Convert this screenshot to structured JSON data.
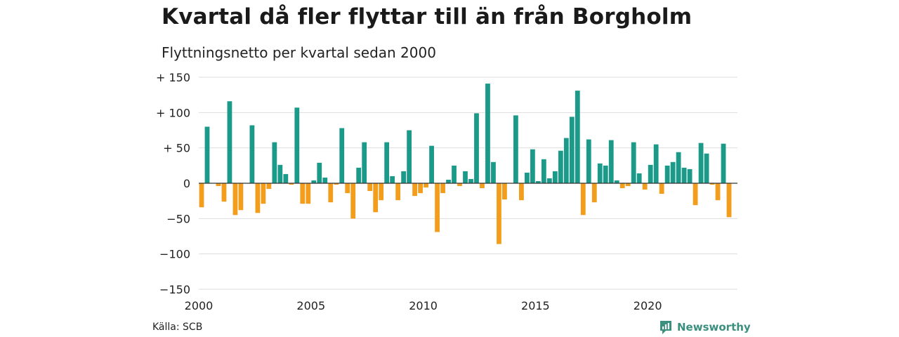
{
  "title": "Kvartal då fler flyttar till än från Borgholm",
  "subtitle": "Flyttningsnetto per kvartal sedan 2000",
  "source": "Källa: SCB",
  "brand": "Newsworthy",
  "colors": {
    "positive": "#1b9a8a",
    "negative": "#f29d1b",
    "grid": "#dddddd",
    "zero": "#333333",
    "brand": "#3a8f7f"
  },
  "icons": {
    "brand": "newsworthy-logo-icon"
  },
  "chart_data": {
    "type": "bar",
    "title": "Kvartal då fler flyttar till än från Borgholm",
    "subtitle": "Flyttningsnetto per kvartal sedan 2000",
    "xlabel": "",
    "ylabel": "",
    "x_start": 2000,
    "quarters_per_year": 4,
    "xlim": [
      2000,
      2024
    ],
    "x_ticks": [
      2000,
      2005,
      2010,
      2015,
      2020
    ],
    "x_tick_labels": [
      "2000",
      "2005",
      "2010",
      "2015",
      "2020"
    ],
    "ylim": [
      -150,
      150
    ],
    "y_ticks": [
      150,
      100,
      50,
      0,
      -50,
      -100,
      -150
    ],
    "y_tick_labels": [
      "+ 150",
      "+ 100",
      "+  50",
      "0",
      "−50",
      "−100",
      "−150"
    ],
    "grid": true,
    "legend": "none",
    "values": [
      -34,
      80,
      0,
      -4,
      -26,
      116,
      -45,
      -38,
      0,
      82,
      -42,
      -29,
      -8,
      58,
      26,
      13,
      -2,
      107,
      -29,
      -29,
      4,
      29,
      8,
      -27,
      -2,
      78,
      -14,
      -50,
      22,
      58,
      -11,
      -41,
      -24,
      58,
      10,
      -24,
      17,
      75,
      -18,
      -14,
      -6,
      53,
      -69,
      -14,
      5,
      25,
      -4,
      17,
      6,
      99,
      -7,
      141,
      30,
      -86,
      -23,
      0,
      96,
      -24,
      15,
      48,
      3,
      34,
      7,
      17,
      46,
      64,
      94,
      131,
      -45,
      62,
      -27,
      28,
      25,
      61,
      4,
      -7,
      -4,
      58,
      14,
      -9,
      26,
      55,
      -15,
      25,
      30,
      44,
      22,
      20,
      -31,
      57,
      42,
      -2,
      -24,
      56,
      -48
    ]
  }
}
